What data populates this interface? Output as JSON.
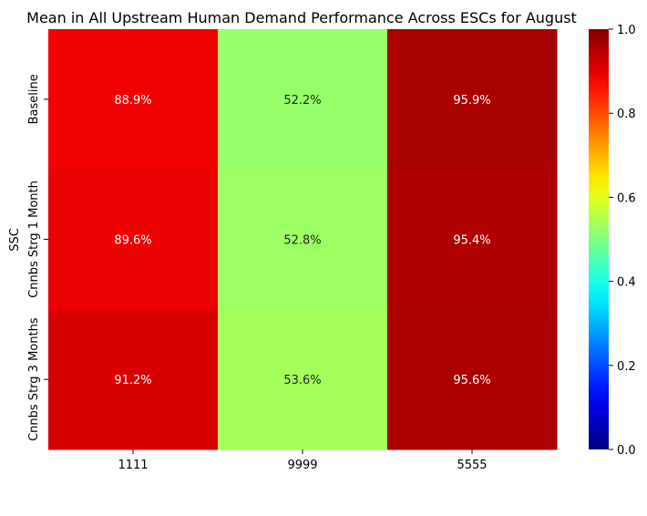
{
  "chart_data": {
    "type": "heatmap",
    "title": "Mean in All Upstream Human Demand Performance Across ESCs for August",
    "xlabel": "",
    "ylabel": "SSC",
    "x_categories": [
      "1111",
      "9999",
      "5555"
    ],
    "y_categories": [
      "Baseline",
      "Cnnbs Strg 1 Month",
      "Cnnbs Strg 3 Months"
    ],
    "values": [
      [
        0.889,
        0.522,
        0.959
      ],
      [
        0.896,
        0.528,
        0.954
      ],
      [
        0.912,
        0.536,
        0.956
      ]
    ],
    "annotations": [
      [
        "88.9%",
        "52.2%",
        "95.9%"
      ],
      [
        "89.6%",
        "52.8%",
        "95.4%"
      ],
      [
        "91.2%",
        "53.6%",
        "95.6%"
      ]
    ],
    "colorbar": {
      "colormap": "jet",
      "range": [
        0,
        1
      ],
      "ticks": [
        "0.0",
        "0.2",
        "0.4",
        "0.6",
        "0.8",
        "1.0"
      ]
    }
  }
}
